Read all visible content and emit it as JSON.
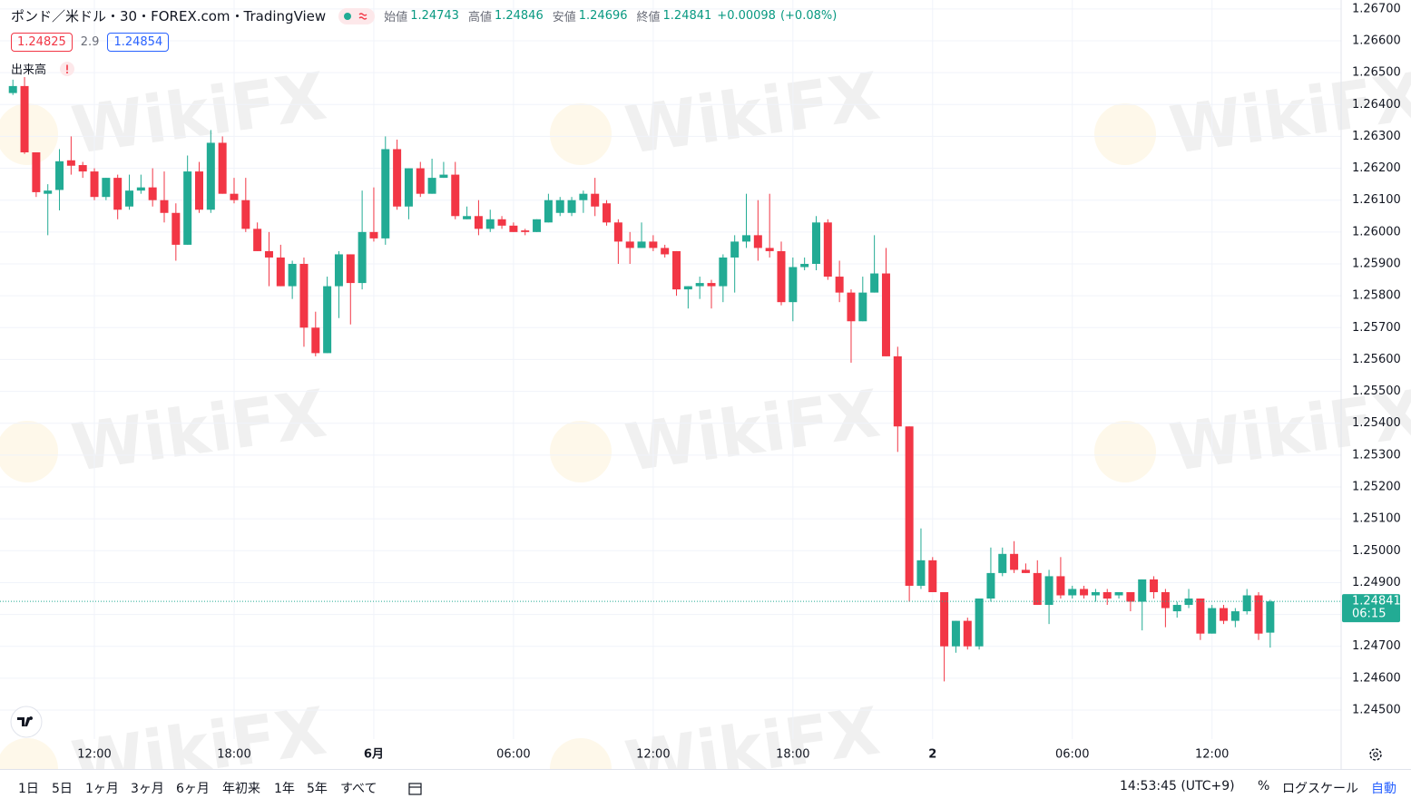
{
  "header": {
    "symbol": "ポンド／米ドル",
    "interval": "30",
    "exchange": "FOREX.com",
    "source": "TradingView",
    "labels": {
      "open": "始値",
      "high": "高値",
      "low": "安値",
      "close": "終値"
    },
    "change": "+0.00098",
    "change_percent": "(+0.08%)",
    "bid": "1.24825",
    "spread": "2.9",
    "ask": "1.24854",
    "volume_label": "出来高"
  },
  "watermark": "WikiFX",
  "chart_data": {
    "type": "candlestick",
    "up_color": "#22ab94",
    "down_color": "#f23645",
    "grid": true,
    "countdown": "06:15",
    "categories": [
      null,
      null,
      null,
      null,
      null,
      null,
      null,
      "12:00",
      null,
      null,
      null,
      null,
      null,
      null,
      null,
      null,
      null,
      null,
      null,
      "18:00",
      null,
      null,
      null,
      null,
      null,
      null,
      null,
      null,
      null,
      null,
      null,
      "6月",
      null,
      null,
      null,
      null,
      null,
      null,
      null,
      null,
      null,
      null,
      null,
      "06:00",
      null,
      null,
      null,
      null,
      null,
      null,
      null,
      null,
      null,
      null,
      null,
      "12:00",
      null,
      null,
      null,
      null,
      null,
      null,
      null,
      null,
      null,
      null,
      null,
      "18:00",
      null,
      null,
      null,
      null,
      null,
      null,
      null,
      null,
      null,
      null,
      null,
      "2",
      null,
      null,
      null,
      null,
      null,
      null,
      null,
      null,
      null,
      null,
      null,
      "06:00",
      null,
      null,
      null,
      null,
      null,
      null,
      null,
      null,
      null,
      null,
      null,
      "12:00",
      null,
      null,
      null,
      null,
      null
    ],
    "open": [
      1.26436,
      1.26458,
      1.2625,
      1.2612,
      1.26132,
      1.26225,
      1.2621,
      1.2619,
      1.2611,
      1.2617,
      1.2608,
      1.2613,
      1.2614,
      1.261,
      1.2606,
      1.2596,
      1.2619,
      1.2607,
      1.2628,
      1.2612,
      1.261,
      1.2601,
      1.2594,
      1.2592,
      1.2583,
      1.259,
      1.257,
      1.2562,
      1.2583,
      1.2593,
      1.2584,
      1.26,
      1.2598,
      1.2626,
      1.2608,
      1.262,
      1.2612,
      1.2617,
      1.2618,
      1.2604,
      1.2605,
      1.2601,
      1.2604,
      1.2602,
      1.26005,
      1.26,
      1.2603,
      1.2606,
      1.2606,
      1.261,
      1.2612,
      1.2609,
      1.2603,
      1.2597,
      1.2595,
      1.2597,
      1.2595,
      1.2594,
      1.2582,
      1.2583,
      1.2584,
      1.2583,
      1.2592,
      1.2597,
      1.2599,
      1.2595,
      1.2594,
      1.2578,
      1.2589,
      1.259,
      1.2603,
      1.2586,
      1.2581,
      1.2572,
      1.2581,
      1.2587,
      1.2561,
      1.2539,
      1.2489,
      1.2497,
      1.2487,
      1.247,
      1.2478,
      1.247,
      1.2485,
      1.2493,
      1.2499,
      1.2494,
      1.2493,
      1.2483,
      1.2492,
      1.2486,
      1.2488,
      1.2486,
      1.2487,
      1.2486,
      1.2487,
      1.2484,
      1.2491,
      1.2487,
      1.2481,
      1.2483,
      1.2485,
      1.2474,
      1.2482,
      1.2478,
      1.2481,
      1.2486,
      1.24743
    ],
    "high": [
      1.26478,
      1.26486,
      1.2625,
      1.2615,
      1.2626,
      1.263,
      1.2622,
      1.262,
      1.2617,
      1.2618,
      1.2618,
      1.2618,
      1.262,
      1.2619,
      1.2609,
      1.2624,
      1.2622,
      1.2632,
      1.263,
      1.2617,
      1.2617,
      1.2603,
      1.26,
      1.2596,
      1.2591,
      1.2592,
      1.2575,
      1.2586,
      1.2594,
      1.2593,
      1.2613,
      1.2614,
      1.263,
      1.2629,
      1.262,
      1.2622,
      1.2623,
      1.2622,
      1.2622,
      1.2608,
      1.261,
      1.2607,
      1.2605,
      1.2603,
      1.2601,
      1.2604,
      1.2612,
      1.2611,
      1.2611,
      1.2613,
      1.2617,
      1.261,
      1.2604,
      1.26,
      1.2603,
      1.2599,
      1.2596,
      1.2594,
      1.2583,
      1.2586,
      1.2585,
      1.2593,
      1.2599,
      1.2612,
      1.261,
      1.2612,
      1.2597,
      1.2592,
      1.2592,
      1.2605,
      1.2604,
      1.2591,
      1.2582,
      1.2586,
      1.2599,
      1.2595,
      1.2564,
      1.2539,
      1.2507,
      1.2498,
      1.2487,
      1.2478,
      1.2479,
      1.2485,
      1.2501,
      1.2501,
      1.2503,
      1.2496,
      1.2497,
      1.2494,
      1.2498,
      1.2489,
      1.2489,
      1.2488,
      1.2488,
      1.2487,
      1.2487,
      1.2491,
      1.2492,
      1.2488,
      1.2484,
      1.2488,
      1.2485,
      1.2483,
      1.2483,
      1.2482,
      1.2488,
      1.2487,
      1.24846
    ],
    "low": [
      1.2643,
      1.26245,
      1.2611,
      1.2599,
      1.26068,
      1.2618,
      1.2617,
      1.261,
      1.261,
      1.2604,
      1.2607,
      1.2612,
      1.2608,
      1.2603,
      1.2591,
      1.2596,
      1.2606,
      1.2606,
      1.2612,
      1.2609,
      1.26,
      1.2594,
      1.2583,
      1.2583,
      1.2579,
      1.2564,
      1.2561,
      1.2562,
      1.2573,
      1.2571,
      1.2582,
      1.2597,
      1.2596,
      1.2607,
      1.2604,
      1.2611,
      1.2612,
      1.2617,
      1.2604,
      1.2604,
      1.2599,
      1.26,
      1.2601,
      1.26,
      1.2599,
      1.26,
      1.2603,
      1.2605,
      1.2605,
      1.2606,
      1.2605,
      1.2602,
      1.259,
      1.259,
      1.2595,
      1.2594,
      1.2592,
      1.258,
      1.2576,
      1.2579,
      1.2576,
      1.2578,
      1.2581,
      1.2595,
      1.2591,
      1.2592,
      1.2577,
      1.2572,
      1.2588,
      1.2588,
      1.2585,
      1.2578,
      1.2559,
      1.2572,
      1.2581,
      1.2561,
      1.2531,
      1.2484,
      1.2488,
      1.2487,
      1.2459,
      1.2468,
      1.2469,
      1.2469,
      1.2484,
      1.2492,
      1.2493,
      1.2493,
      1.2483,
      1.2477,
      1.2485,
      1.2485,
      1.2485,
      1.2484,
      1.2483,
      1.2485,
      1.2481,
      1.2475,
      1.2485,
      1.2476,
      1.2479,
      1.2482,
      1.2472,
      1.2474,
      1.2477,
      1.2476,
      1.248,
      1.2472,
      1.24696
    ],
    "close": [
      1.26458,
      1.2625,
      1.26125,
      1.2613,
      1.26222,
      1.26208,
      1.2619,
      1.2611,
      1.2617,
      1.2607,
      1.2613,
      1.2614,
      1.261,
      1.2606,
      1.2596,
      1.2619,
      1.2607,
      1.2628,
      1.2612,
      1.261,
      1.2601,
      1.2594,
      1.2592,
      1.2583,
      1.259,
      1.257,
      1.2562,
      1.2583,
      1.2593,
      1.2584,
      1.26,
      1.2598,
      1.2626,
      1.2608,
      1.262,
      1.2612,
      1.2617,
      1.2618,
      1.2605,
      1.2605,
      1.2601,
      1.2604,
      1.2602,
      1.26,
      1.26,
      1.2604,
      1.261,
      1.261,
      1.261,
      1.2612,
      1.2608,
      1.2603,
      1.2597,
      1.2595,
      1.2597,
      1.2595,
      1.2593,
      1.2582,
      1.2583,
      1.2584,
      1.2583,
      1.2592,
      1.2597,
      1.2599,
      1.2595,
      1.2594,
      1.2578,
      1.2589,
      1.259,
      1.2603,
      1.2586,
      1.2581,
      1.2572,
      1.2581,
      1.2587,
      1.2561,
      1.2539,
      1.2489,
      1.2497,
      1.2487,
      1.247,
      1.2478,
      1.247,
      1.2485,
      1.2493,
      1.2499,
      1.2494,
      1.2493,
      1.2483,
      1.2492,
      1.2486,
      1.2488,
      1.2486,
      1.2487,
      1.2485,
      1.2487,
      1.2484,
      1.2491,
      1.2487,
      1.2482,
      1.2483,
      1.2485,
      1.2474,
      1.2482,
      1.2478,
      1.2481,
      1.2486,
      1.2474,
      1.24841
    ],
    "ylim": [
      1.24409,
      1.26728
    ],
    "yticks": [
      {
        "value": 1.245,
        "label": "1.24500"
      },
      {
        "value": 1.246,
        "label": "1.24600"
      },
      {
        "value": 1.247,
        "label": "1.24700"
      },
      {
        "value": 1.248,
        "label": "1.24800"
      },
      {
        "value": 1.249,
        "label": "1.24900"
      },
      {
        "value": 1.25,
        "label": "1.25000"
      },
      {
        "value": 1.251,
        "label": "1.25100"
      },
      {
        "value": 1.252,
        "label": "1.25200"
      },
      {
        "value": 1.253,
        "label": "1.25300"
      },
      {
        "value": 1.254,
        "label": "1.25400"
      },
      {
        "value": 1.255,
        "label": "1.25500"
      },
      {
        "value": 1.256,
        "label": "1.25600"
      },
      {
        "value": 1.257,
        "label": "1.25700"
      },
      {
        "value": 1.258,
        "label": "1.25800"
      },
      {
        "value": 1.259,
        "label": "1.25900"
      },
      {
        "value": 1.26,
        "label": "1.26000"
      },
      {
        "value": 1.261,
        "label": "1.26100"
      },
      {
        "value": 1.262,
        "label": "1.26200"
      },
      {
        "value": 1.263,
        "label": "1.26300"
      },
      {
        "value": 1.264,
        "label": "1.26400"
      },
      {
        "value": 1.265,
        "label": "1.26500"
      },
      {
        "value": 1.266,
        "label": "1.26600"
      },
      {
        "value": 1.267,
        "label": "1.26700"
      }
    ]
  },
  "toolbar": {
    "ranges": [
      "1日",
      "5日",
      "1ヶ月",
      "3ヶ月",
      "6ヶ月",
      "年初来",
      "1年",
      "5年",
      "すべて"
    ],
    "clock": "14:53:45 (UTC+9)",
    "percent": "%",
    "log": "ログスケール",
    "auto": "自動"
  }
}
